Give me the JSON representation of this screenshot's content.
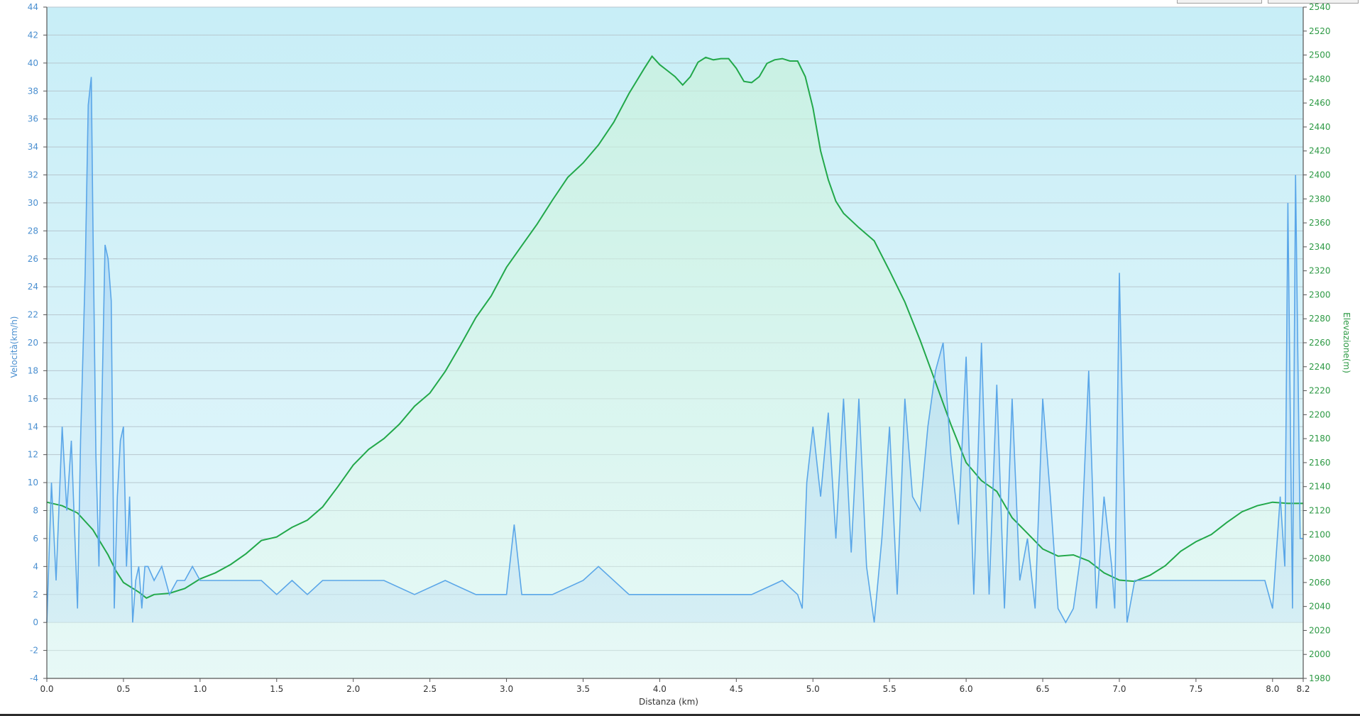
{
  "colors": {
    "speed": "#5aa6e8",
    "elevation": "#22a84a",
    "plot_bg_top": "#c8eef7",
    "plot_bg_bottom": "#e6f7fb",
    "gridline": "#b7c7cf",
    "axis": "#555555"
  },
  "chart_data": {
    "type": "area",
    "xlabel": "Distanza  (km)",
    "ylabel_left": "Velocità(km/h)",
    "ylabel_right": "Elevazione(m)",
    "xlim": [
      0,
      8.2
    ],
    "ylim_left": [
      -4,
      44
    ],
    "ylim_right": [
      1980,
      2540
    ],
    "x_ticks": [
      "0.0",
      "0.5",
      "1.0",
      "1.5",
      "2.0",
      "2.5",
      "3.0",
      "3.5",
      "4.0",
      "4.5",
      "5.0",
      "5.5",
      "6.0",
      "6.5",
      "7.0",
      "7.5",
      "8.0",
      "8.2"
    ],
    "x_tick_values": [
      0,
      0.5,
      1,
      1.5,
      2,
      2.5,
      3,
      3.5,
      4,
      4.5,
      5,
      5.5,
      6,
      6.5,
      7,
      7.5,
      8,
      8.2
    ],
    "y_left_ticks": [
      "-4",
      "-2",
      "0",
      "2",
      "4",
      "6",
      "8",
      "10",
      "12",
      "14",
      "16",
      "18",
      "20",
      "22",
      "24",
      "26",
      "28",
      "30",
      "32",
      "34",
      "36",
      "38",
      "40",
      "42",
      "44"
    ],
    "y_right_ticks": [
      "1980",
      "2000",
      "2020",
      "2040",
      "2060",
      "2080",
      "2100",
      "2120",
      "2140",
      "2160",
      "2180",
      "2200",
      "2220",
      "2240",
      "2260",
      "2280",
      "2300",
      "2320",
      "2340",
      "2360",
      "2380",
      "2400",
      "2420",
      "2440",
      "2460",
      "2480",
      "2500",
      "2520",
      "2540"
    ],
    "grid": true,
    "series": [
      {
        "name": "Velocità(km/h)",
        "axis": "left",
        "x": [
          0.0,
          0.03,
          0.06,
          0.1,
          0.13,
          0.16,
          0.2,
          0.22,
          0.25,
          0.27,
          0.29,
          0.3,
          0.32,
          0.34,
          0.36,
          0.38,
          0.4,
          0.42,
          0.44,
          0.46,
          0.48,
          0.5,
          0.52,
          0.54,
          0.56,
          0.58,
          0.6,
          0.62,
          0.64,
          0.66,
          0.7,
          0.75,
          0.8,
          0.85,
          0.9,
          0.95,
          1.0,
          1.1,
          1.2,
          1.3,
          1.4,
          1.5,
          1.6,
          1.7,
          1.8,
          1.9,
          2.0,
          2.2,
          2.4,
          2.6,
          2.8,
          3.0,
          3.05,
          3.1,
          3.3,
          3.5,
          3.6,
          3.8,
          4.0,
          4.2,
          4.4,
          4.6,
          4.8,
          4.9,
          4.93,
          4.96,
          5.0,
          5.05,
          5.1,
          5.15,
          5.2,
          5.25,
          5.3,
          5.35,
          5.4,
          5.45,
          5.5,
          5.55,
          5.6,
          5.65,
          5.7,
          5.75,
          5.8,
          5.85,
          5.9,
          5.95,
          6.0,
          6.05,
          6.1,
          6.15,
          6.2,
          6.25,
          6.3,
          6.35,
          6.4,
          6.45,
          6.5,
          6.55,
          6.6,
          6.65,
          6.7,
          6.75,
          6.8,
          6.85,
          6.9,
          6.95,
          6.97,
          7.0,
          7.05,
          7.1,
          7.2,
          7.4,
          7.6,
          7.8,
          7.95,
          8.0,
          8.05,
          8.08,
          8.1,
          8.13,
          8.15,
          8.18,
          8.2
        ],
        "values": [
          0,
          10,
          3,
          14,
          8,
          13,
          1,
          13,
          25,
          37,
          39,
          29,
          12,
          4,
          16,
          27,
          26,
          23,
          1,
          9,
          13,
          14,
          4,
          9,
          0,
          3,
          4,
          1,
          4,
          4,
          3,
          4,
          2,
          3,
          3,
          4,
          3,
          3,
          3,
          3,
          3,
          2,
          3,
          2,
          3,
          3,
          3,
          3,
          2,
          3,
          2,
          2,
          7,
          2,
          2,
          3,
          4,
          2,
          2,
          2,
          2,
          2,
          3,
          2,
          1,
          10,
          14,
          9,
          15,
          6,
          16,
          5,
          16,
          4,
          0,
          6,
          14,
          2,
          16,
          9,
          8,
          14,
          18,
          20,
          12,
          7,
          19,
          2,
          20,
          2,
          17,
          1,
          16,
          3,
          6,
          1,
          16,
          9,
          1,
          0,
          1,
          5,
          18,
          1,
          9,
          4,
          1,
          25,
          0,
          3,
          3,
          3,
          3,
          3,
          3,
          1,
          9,
          4,
          30,
          1,
          32,
          6,
          6
        ]
      },
      {
        "name": "Elevazione(m)",
        "axis": "right",
        "x": [
          0.0,
          0.1,
          0.2,
          0.3,
          0.4,
          0.45,
          0.5,
          0.6,
          0.65,
          0.7,
          0.8,
          0.9,
          1.0,
          1.1,
          1.2,
          1.3,
          1.4,
          1.5,
          1.6,
          1.7,
          1.8,
          1.9,
          2.0,
          2.1,
          2.2,
          2.3,
          2.4,
          2.5,
          2.6,
          2.7,
          2.8,
          2.9,
          3.0,
          3.1,
          3.2,
          3.3,
          3.4,
          3.5,
          3.6,
          3.7,
          3.8,
          3.9,
          3.95,
          4.0,
          4.05,
          4.1,
          4.15,
          4.2,
          4.25,
          4.3,
          4.35,
          4.4,
          4.45,
          4.5,
          4.55,
          4.6,
          4.65,
          4.7,
          4.75,
          4.8,
          4.85,
          4.9,
          4.95,
          5.0,
          5.05,
          5.1,
          5.15,
          5.2,
          5.3,
          5.4,
          5.5,
          5.6,
          5.7,
          5.8,
          5.9,
          6.0,
          6.1,
          6.2,
          6.3,
          6.4,
          6.5,
          6.6,
          6.7,
          6.8,
          6.9,
          7.0,
          7.1,
          7.2,
          7.3,
          7.4,
          7.5,
          7.6,
          7.7,
          7.8,
          7.9,
          8.0,
          8.1,
          8.2
        ],
        "values": [
          2127,
          2124,
          2118,
          2104,
          2083,
          2070,
          2060,
          2052,
          2047,
          2050,
          2051,
          2055,
          2063,
          2068,
          2075,
          2084,
          2095,
          2098,
          2106,
          2112,
          2123,
          2140,
          2158,
          2171,
          2180,
          2192,
          2207,
          2218,
          2236,
          2258,
          2281,
          2299,
          2323,
          2341,
          2359,
          2379,
          2398,
          2410,
          2425,
          2444,
          2468,
          2489,
          2499,
          2492,
          2487,
          2482,
          2475,
          2482,
          2494,
          2498,
          2496,
          2497,
          2497,
          2489,
          2478,
          2477,
          2482,
          2493,
          2496,
          2497,
          2495,
          2495,
          2482,
          2456,
          2420,
          2396,
          2378,
          2368,
          2356,
          2345,
          2320,
          2294,
          2262,
          2227,
          2192,
          2160,
          2145,
          2136,
          2114,
          2101,
          2088,
          2082,
          2083,
          2078,
          2068,
          2062,
          2061,
          2066,
          2074,
          2086,
          2094,
          2100,
          2110,
          2119,
          2124,
          2127,
          2126,
          2126
        ]
      }
    ]
  }
}
